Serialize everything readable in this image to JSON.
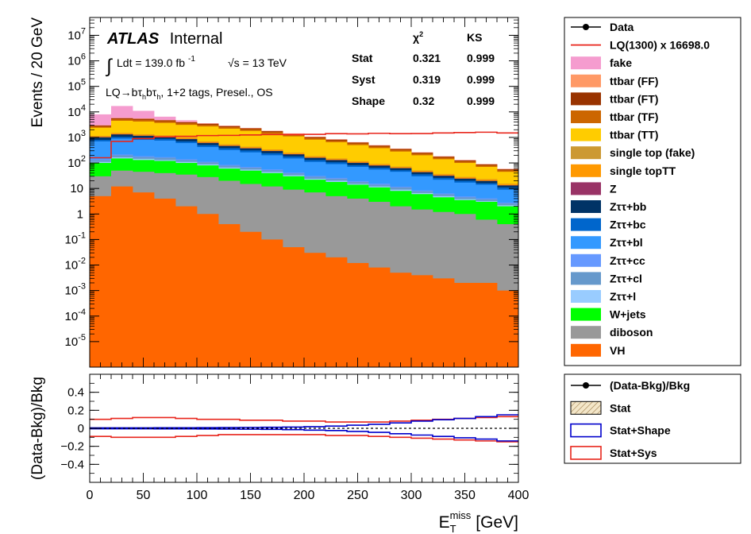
{
  "colors": {
    "fake": "#f59ccf",
    "ttbar_ff": "#ff9966",
    "ttbar_ft": "#993300",
    "ttbar_tf": "#cc6600",
    "ttbar_tt": "#ffcc00",
    "single_top_fake": "#cc9933",
    "single_top_tt": "#ff9900",
    "z": "#993366",
    "ztt_bb": "#003366",
    "ztt_bc": "#0066cc",
    "ztt_bl": "#3399ff",
    "ztt_cc": "#6699ff",
    "ztt_cl": "#6699cc",
    "ztt_l": "#99ccff",
    "wjets": "#00ff00",
    "diboson": "#999999",
    "vh": "#ff6600",
    "signal": "#e8261c",
    "stat_shape": "#0000cc",
    "stat_sys": "#e8261c"
  },
  "labels": {
    "atlas": "ATLAS",
    "internal": "Internal",
    "lumi": "Ldt = 139.0 fb",
    "lumi_exp": "-1",
    "energy": "√s = 13 TeV",
    "region_prefix": "LQ→bτ",
    "region_mid": "bτ",
    "region_suffix": ", 1+2 tags, Presel., OS",
    "sub_h": "h",
    "integral": "∫"
  },
  "stats_table": {
    "col_chi2": "χ",
    "col_chi2_exp": "2",
    "col_ks": "KS",
    "rows": [
      {
        "name": "Stat",
        "chi2": "0.321",
        "ks": "0.999"
      },
      {
        "name": "Syst",
        "chi2": "0.319",
        "ks": "0.999"
      },
      {
        "name": "Shape",
        "chi2": "0.32",
        "ks": "0.999"
      }
    ]
  },
  "legend_main": [
    {
      "label": "Data",
      "kind": "data"
    },
    {
      "label": "LQ(1300) x 16698.0",
      "kind": "line",
      "color_key": "signal"
    },
    {
      "label": "fake",
      "kind": "box",
      "color_key": "fake"
    },
    {
      "label": "ttbar (FF)",
      "kind": "box",
      "color_key": "ttbar_ff"
    },
    {
      "label": "ttbar (FT)",
      "kind": "box",
      "color_key": "ttbar_ft"
    },
    {
      "label": "ttbar (TF)",
      "kind": "box",
      "color_key": "ttbar_tf"
    },
    {
      "label": "ttbar (TT)",
      "kind": "box",
      "color_key": "ttbar_tt"
    },
    {
      "label": "single top (fake)",
      "kind": "box",
      "color_key": "single_top_fake"
    },
    {
      "label": "single topTT",
      "kind": "box",
      "color_key": "single_top_tt"
    },
    {
      "label": "Z",
      "kind": "box",
      "color_key": "z"
    },
    {
      "label": "Zττ+bb",
      "kind": "box",
      "color_key": "ztt_bb"
    },
    {
      "label": "Zττ+bc",
      "kind": "box",
      "color_key": "ztt_bc"
    },
    {
      "label": "Zττ+bl",
      "kind": "box",
      "color_key": "ztt_bl"
    },
    {
      "label": "Zττ+cc",
      "kind": "box",
      "color_key": "ztt_cc"
    },
    {
      "label": "Zττ+cl",
      "kind": "box",
      "color_key": "ztt_cl"
    },
    {
      "label": "Zττ+l",
      "kind": "box",
      "color_key": "ztt_l"
    },
    {
      "label": "W+jets",
      "kind": "box",
      "color_key": "wjets"
    },
    {
      "label": "diboson",
      "kind": "box",
      "color_key": "diboson"
    },
    {
      "label": "VH",
      "kind": "box",
      "color_key": "vh"
    }
  ],
  "legend_ratio": [
    {
      "label": "(Data-Bkg)/Bkg",
      "kind": "data"
    },
    {
      "label": "Stat",
      "kind": "hatch"
    },
    {
      "label": "Stat+Shape",
      "kind": "outline",
      "color_key": "stat_shape"
    },
    {
      "label": "Stat+Sys",
      "kind": "outline",
      "color_key": "stat_sys"
    }
  ],
  "chart_data": {
    "type": "area",
    "xlabel": "E",
    "xlabel_sub": "T",
    "xlabel_sup": "miss",
    "xlabel_unit": "[GeV]",
    "ylabel": "Events / 20 GeV",
    "ratio_ylabel": "(Data-Bkg)/Bkg",
    "log_y": true,
    "xlim": [
      0,
      400
    ],
    "ylim": [
      1e-06,
      50000000.0
    ],
    "ratio_ylim": [
      -0.6,
      0.6
    ],
    "x_ticks": [
      0,
      50,
      100,
      150,
      200,
      250,
      300,
      350,
      400
    ],
    "y_ticks": [
      {
        "value": 1e-05,
        "base": "10",
        "exp": "-5"
      },
      {
        "value": 0.0001,
        "base": "10",
        "exp": "-4"
      },
      {
        "value": 0.001,
        "base": "10",
        "exp": "-3"
      },
      {
        "value": 0.01,
        "base": "10",
        "exp": "-2"
      },
      {
        "value": 0.1,
        "base": "10",
        "exp": "-1"
      },
      {
        "value": 1,
        "base": "1",
        "exp": ""
      },
      {
        "value": 10,
        "base": "10",
        "exp": ""
      },
      {
        "value": 100,
        "base": "10",
        "exp": "2"
      },
      {
        "value": 1000,
        "base": "10",
        "exp": "3"
      },
      {
        "value": 10000.0,
        "base": "10",
        "exp": "4"
      },
      {
        "value": 100000.0,
        "base": "10",
        "exp": "5"
      },
      {
        "value": 1000000.0,
        "base": "10",
        "exp": "6"
      },
      {
        "value": 10000000.0,
        "base": "10",
        "exp": "7"
      }
    ],
    "ratio_ticks": [
      {
        "value": -0.4,
        "label": "−0.4"
      },
      {
        "value": -0.2,
        "label": "−0.2"
      },
      {
        "value": 0,
        "label": "0"
      },
      {
        "value": 0.2,
        "label": "0.2"
      },
      {
        "value": 0.4,
        "label": "0.4"
      }
    ],
    "bin_edges": [
      0,
      20,
      40,
      60,
      80,
      100,
      120,
      140,
      160,
      180,
      200,
      220,
      240,
      260,
      280,
      300,
      320,
      340,
      360,
      380,
      400
    ],
    "stack_order_bottom_to_top": [
      "vh",
      "diboson",
      "wjets",
      "ztt_l",
      "ztt_cl",
      "ztt_cc",
      "ztt_bl",
      "ztt_bc",
      "ztt_bb",
      "z",
      "single_top_tt",
      "single_top_fake",
      "ttbar_tt",
      "ttbar_tf",
      "ttbar_ft",
      "ttbar_ff",
      "fake"
    ],
    "stack_cumulative_tops": {
      "vh": [
        5,
        12,
        7,
        4,
        2,
        1,
        0.4,
        0.2,
        0.1,
        0.05,
        0.03,
        0.02,
        0.012,
        0.008,
        0.005,
        0.004,
        0.003,
        0.002,
        0.002,
        0.001
      ],
      "diboson": [
        30,
        50,
        45,
        40,
        35,
        28,
        20,
        15,
        12,
        9,
        7,
        5,
        4,
        3,
        2,
        1.5,
        1.2,
        1,
        0.6,
        0.4
      ],
      "wjets": [
        100,
        150,
        130,
        120,
        100,
        80,
        60,
        50,
        40,
        30,
        22,
        18,
        14,
        11,
        8,
        6,
        4.5,
        3.5,
        3,
        2
      ],
      "ztt_l": [
        110,
        165,
        145,
        130,
        110,
        88,
        66,
        55,
        44,
        33,
        24,
        20,
        15,
        12,
        9,
        6.6,
        5,
        3.8,
        3.2,
        2.2
      ],
      "ztt_cl": [
        130,
        200,
        170,
        160,
        130,
        104,
        78,
        65,
        52,
        39,
        29,
        24,
        18,
        14,
        11,
        7.8,
        5.9,
        4.5,
        3.8,
        2.6
      ],
      "ztt_cc": [
        140,
        215,
        185,
        170,
        140,
        112,
        84,
        70,
        56,
        42,
        31,
        26,
        19.5,
        15.5,
        11.8,
        8.4,
        6.4,
        4.9,
        4.1,
        2.8
      ],
      "ztt_bl": [
        700,
        900,
        800,
        750,
        600,
        420,
        320,
        260,
        200,
        150,
        110,
        90,
        70,
        55,
        45,
        30,
        22,
        17,
        14,
        9
      ],
      "ztt_bc": [
        800,
        1050,
        950,
        880,
        700,
        500,
        380,
        310,
        240,
        180,
        130,
        106,
        82,
        65,
        52,
        36,
        26,
        20,
        16,
        11
      ],
      "ztt_bb": [
        1000,
        1300,
        1150,
        1050,
        850,
        600,
        460,
        370,
        290,
        215,
        158,
        128,
        100,
        78,
        62,
        43,
        31,
        24,
        19.5,
        13
      ],
      "z": [
        1020,
        1330,
        1170,
        1070,
        870,
        615,
        470,
        378,
        296,
        220,
        161,
        131,
        102,
        80,
        63,
        44,
        32,
        24.5,
        20,
        13.3
      ],
      "single_top_tt": [
        1120,
        1460,
        1290,
        1180,
        960,
        680,
        520,
        420,
        330,
        245,
        180,
        146,
        114,
        89,
        70,
        49,
        36,
        27.5,
        22.5,
        15
      ],
      "single_top_fake": [
        1150,
        1500,
        1330,
        1210,
        985,
        700,
        535,
        432,
        340,
        252,
        185,
        150,
        117,
        91.5,
        72,
        50.5,
        37,
        28.3,
        23.2,
        15.4
      ],
      "ttbar_tt": [
        2400,
        4500,
        4200,
        3700,
        3100,
        2700,
        2200,
        1800,
        1400,
        1100,
        820,
        650,
        500,
        380,
        280,
        200,
        140,
        100,
        70,
        45
      ],
      "ttbar_tf": [
        2700,
        5200,
        4900,
        4300,
        3600,
        3150,
        2550,
        2080,
        1620,
        1270,
        950,
        750,
        580,
        440,
        325,
        232,
        162,
        116,
        81,
        52
      ],
      "ttbar_ft": [
        2900,
        5600,
        5300,
        4650,
        3900,
        3400,
        2750,
        2250,
        1750,
        1370,
        1025,
        810,
        625,
        475,
        350,
        250,
        175,
        125,
        87,
        56
      ],
      "ttbar_ff": [
        3000,
        5800,
        5500,
        4820,
        4050,
        3520,
        2850,
        2330,
        1810,
        1420,
        1060,
        840,
        648,
        492,
        362,
        259,
        181,
        129,
        90,
        58
      ],
      "fake": [
        8000,
        17000,
        11000,
        6500,
        4700,
        3600,
        2900,
        2360,
        1830,
        1440,
        1075,
        852,
        656,
        498,
        366,
        262,
        183,
        131,
        91,
        59
      ]
    },
    "signal": {
      "name": "LQ(1300) x 16698.0",
      "values": [
        160,
        700,
        900,
        1050,
        1100,
        1180,
        1200,
        1250,
        1300,
        1300,
        1320,
        1400,
        1380,
        1450,
        1400,
        1420,
        1500,
        1550,
        1600,
        1500
      ]
    },
    "ratio_band_stat_sys": {
      "up": [
        0.1,
        0.11,
        0.12,
        0.12,
        0.11,
        0.1,
        0.1,
        0.09,
        0.09,
        0.08,
        0.08,
        0.07,
        0.07,
        0.07,
        0.08,
        0.09,
        0.1,
        0.11,
        0.12,
        0.13
      ],
      "down": [
        -0.09,
        -0.1,
        -0.1,
        -0.1,
        -0.09,
        -0.08,
        -0.07,
        -0.07,
        -0.07,
        -0.07,
        -0.07,
        -0.08,
        -0.08,
        -0.09,
        -0.1,
        -0.11,
        -0.12,
        -0.13,
        -0.14,
        -0.15
      ]
    },
    "ratio_band_stat_shape": {
      "up": [
        0.005,
        0.005,
        0.005,
        0.006,
        0.006,
        0.007,
        0.008,
        0.01,
        0.012,
        0.014,
        0.018,
        0.025,
        0.035,
        0.045,
        0.06,
        0.08,
        0.095,
        0.11,
        0.13,
        0.15
      ],
      "down": [
        -0.005,
        -0.005,
        -0.005,
        -0.006,
        -0.006,
        -0.007,
        -0.008,
        -0.01,
        -0.012,
        -0.015,
        -0.02,
        -0.025,
        -0.035,
        -0.045,
        -0.06,
        -0.075,
        -0.09,
        -0.105,
        -0.12,
        -0.14
      ]
    }
  }
}
